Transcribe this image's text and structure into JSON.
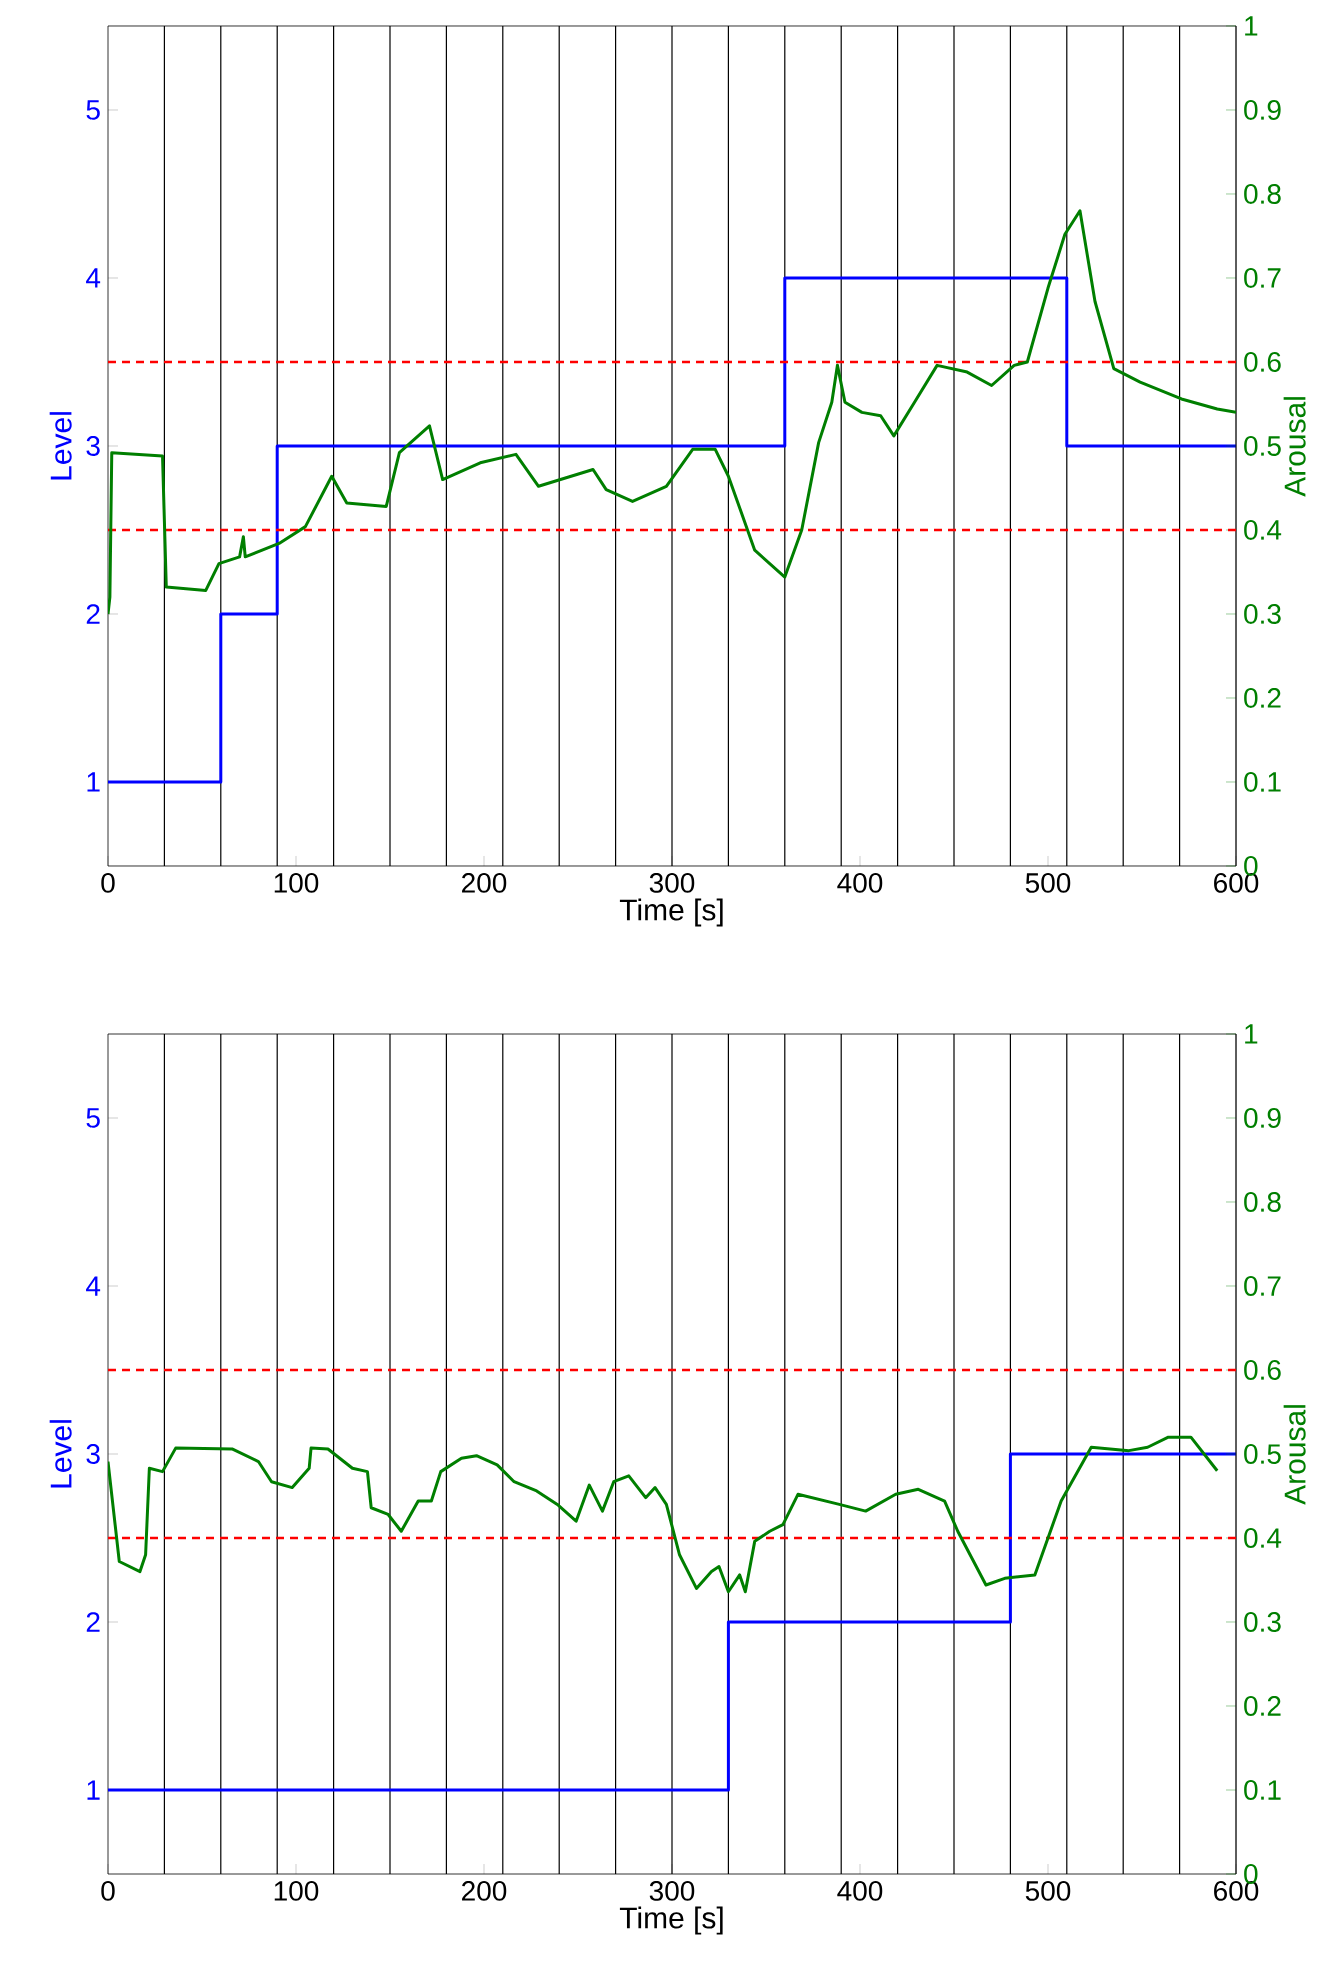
{
  "chart_data": [
    {
      "type": "line",
      "xlabel": "Time [s]",
      "ylabel": "Level",
      "y2label": "Arousal",
      "xlim": [
        0,
        600
      ],
      "xticks": [
        0,
        100,
        200,
        300,
        400,
        500,
        600
      ],
      "ylim": [
        0.5,
        5.5
      ],
      "yticks": [
        1,
        2,
        3,
        4,
        5
      ],
      "y2lim": [
        0,
        1
      ],
      "y2ticks": [
        0,
        0.1,
        0.2,
        0.3,
        0.4,
        0.5,
        0.6,
        0.7,
        0.8,
        0.9,
        1
      ],
      "series": [
        {
          "type": "step",
          "color": "#0000ff",
          "x": [
            0,
            60,
            90,
            360,
            510,
            600
          ],
          "values": [
            1,
            2,
            3,
            4,
            3,
            3
          ]
        },
        {
          "axis": "y2",
          "color": "#007f00",
          "x": [
            0,
            1,
            2,
            29,
            31,
            52,
            59,
            70,
            72,
            73,
            91,
            105,
            119,
            127,
            148,
            155,
            171,
            178,
            198,
            217,
            229,
            258,
            265,
            279,
            297,
            311,
            323,
            330,
            344,
            360,
            369,
            378,
            385,
            388,
            392,
            401,
            411,
            418,
            429,
            441,
            457,
            470,
            482,
            489,
            500,
            509,
            517,
            525,
            535,
            549,
            571,
            590,
            600
          ],
          "values": [
            0.3,
            0.32,
            0.492,
            0.488,
            0.332,
            0.328,
            0.36,
            0.368,
            0.392,
            0.368,
            0.384,
            0.404,
            0.464,
            0.432,
            0.428,
            0.492,
            0.524,
            0.46,
            0.48,
            0.49,
            0.452,
            0.472,
            0.448,
            0.434,
            0.452,
            0.496,
            0.496,
            0.464,
            0.376,
            0.344,
            0.4,
            0.504,
            0.552,
            0.596,
            0.552,
            0.54,
            0.536,
            0.512,
            0.552,
            0.596,
            0.588,
            0.572,
            0.596,
            0.6,
            0.688,
            0.752,
            0.78,
            0.672,
            0.592,
            0.576,
            0.556,
            0.544,
            0.54
          ]
        }
      ],
      "ref_lines": [
        {
          "axis": "x",
          "value": 30,
          "color": "#000000"
        },
        {
          "axis": "x",
          "value": 60,
          "color": "#000000"
        },
        {
          "axis": "x",
          "value": 90,
          "color": "#000000"
        },
        {
          "axis": "x",
          "value": 120,
          "color": "#000000"
        },
        {
          "axis": "x",
          "value": 150,
          "color": "#000000"
        },
        {
          "axis": "x",
          "value": 180,
          "color": "#000000"
        },
        {
          "axis": "x",
          "value": 210,
          "color": "#000000"
        },
        {
          "axis": "x",
          "value": 240,
          "color": "#000000"
        },
        {
          "axis": "x",
          "value": 270,
          "color": "#000000"
        },
        {
          "axis": "x",
          "value": 300,
          "color": "#000000"
        },
        {
          "axis": "x",
          "value": 330,
          "color": "#000000"
        },
        {
          "axis": "x",
          "value": 360,
          "color": "#000000"
        },
        {
          "axis": "x",
          "value": 390,
          "color": "#000000"
        },
        {
          "axis": "x",
          "value": 420,
          "color": "#000000"
        },
        {
          "axis": "x",
          "value": 450,
          "color": "#000000"
        },
        {
          "axis": "x",
          "value": 480,
          "color": "#000000"
        },
        {
          "axis": "x",
          "value": 510,
          "color": "#000000"
        },
        {
          "axis": "x",
          "value": 540,
          "color": "#000000"
        },
        {
          "axis": "x",
          "value": 570,
          "color": "#000000"
        },
        {
          "axis": "y2",
          "value": 0.4,
          "color": "#ff0000",
          "line_style": "dashed"
        },
        {
          "axis": "y2",
          "value": 0.6,
          "color": "#ff0000",
          "line_style": "dashed"
        }
      ]
    },
    {
      "type": "line",
      "xlabel": "Time [s]",
      "ylabel": "Level",
      "y2label": "Arousal",
      "xlim": [
        0,
        600
      ],
      "xticks": [
        0,
        100,
        200,
        300,
        400,
        500,
        600
      ],
      "ylim": [
        0.5,
        5.5
      ],
      "yticks": [
        1,
        2,
        3,
        4,
        5
      ],
      "y2lim": [
        0,
        1
      ],
      "y2ticks": [
        0,
        0.1,
        0.2,
        0.3,
        0.4,
        0.5,
        0.6,
        0.7,
        0.8,
        0.9,
        1
      ],
      "series": [
        {
          "type": "step",
          "color": "#0000ff",
          "x": [
            0,
            330,
            480,
            600
          ],
          "values": [
            1,
            2,
            3,
            3
          ]
        },
        {
          "axis": "y2",
          "color": "#007f00",
          "x": [
            0,
            6,
            17,
            20,
            22,
            29,
            36,
            66,
            80,
            87,
            98,
            107,
            108,
            117,
            130,
            138,
            140,
            149,
            156,
            165,
            172,
            177,
            188,
            196,
            207,
            216,
            228,
            239,
            249,
            256,
            263,
            269,
            277,
            286,
            291,
            297,
            304,
            313,
            321,
            325,
            330,
            336,
            339,
            344,
            352,
            359,
            367,
            389,
            403,
            419,
            431,
            445,
            452,
            467,
            477,
            493,
            507,
            523,
            543,
            553,
            564,
            576,
            590
          ],
          "values": [
            0.491,
            0.372,
            0.36,
            0.38,
            0.483,
            0.479,
            0.507,
            0.506,
            0.491,
            0.467,
            0.46,
            0.483,
            0.507,
            0.506,
            0.483,
            0.479,
            0.436,
            0.428,
            0.408,
            0.444,
            0.444,
            0.479,
            0.495,
            0.498,
            0.487,
            0.467,
            0.456,
            0.44,
            0.42,
            0.463,
            0.432,
            0.467,
            0.474,
            0.448,
            0.46,
            0.44,
            0.38,
            0.34,
            0.36,
            0.366,
            0.336,
            0.356,
            0.336,
            0.396,
            0.408,
            0.416,
            0.452,
            0.44,
            0.432,
            0.452,
            0.458,
            0.444,
            0.408,
            0.344,
            0.352,
            0.356,
            0.444,
            0.508,
            0.504,
            0.508,
            0.52,
            0.52,
            0.48
          ]
        }
      ],
      "ref_lines": [
        {
          "axis": "x",
          "value": 30,
          "color": "#000000"
        },
        {
          "axis": "x",
          "value": 60,
          "color": "#000000"
        },
        {
          "axis": "x",
          "value": 90,
          "color": "#000000"
        },
        {
          "axis": "x",
          "value": 120,
          "color": "#000000"
        },
        {
          "axis": "x",
          "value": 150,
          "color": "#000000"
        },
        {
          "axis": "x",
          "value": 180,
          "color": "#000000"
        },
        {
          "axis": "x",
          "value": 210,
          "color": "#000000"
        },
        {
          "axis": "x",
          "value": 240,
          "color": "#000000"
        },
        {
          "axis": "x",
          "value": 270,
          "color": "#000000"
        },
        {
          "axis": "x",
          "value": 300,
          "color": "#000000"
        },
        {
          "axis": "x",
          "value": 330,
          "color": "#000000"
        },
        {
          "axis": "x",
          "value": 360,
          "color": "#000000"
        },
        {
          "axis": "x",
          "value": 390,
          "color": "#000000"
        },
        {
          "axis": "x",
          "value": 420,
          "color": "#000000"
        },
        {
          "axis": "x",
          "value": 450,
          "color": "#000000"
        },
        {
          "axis": "x",
          "value": 480,
          "color": "#000000"
        },
        {
          "axis": "x",
          "value": 510,
          "color": "#000000"
        },
        {
          "axis": "x",
          "value": 540,
          "color": "#000000"
        },
        {
          "axis": "x",
          "value": 570,
          "color": "#000000"
        },
        {
          "axis": "y2",
          "value": 0.4,
          "color": "#ff0000",
          "line_style": "dashed"
        },
        {
          "axis": "y2",
          "value": 0.6,
          "color": "#ff0000",
          "line_style": "dashed"
        }
      ]
    }
  ]
}
